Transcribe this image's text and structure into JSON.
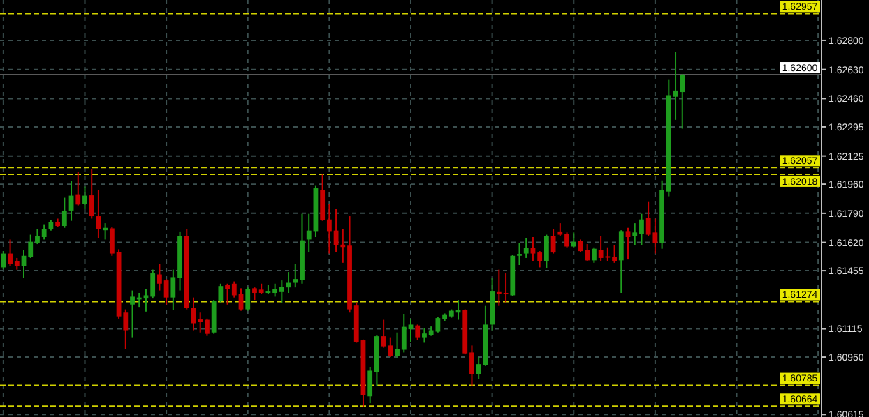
{
  "chart_data": {
    "type": "candlestick",
    "categories": [
      null,
      null,
      null,
      null,
      null,
      null,
      null,
      null,
      null,
      null,
      null,
      null,
      null,
      null,
      null,
      null,
      null,
      null,
      null,
      null,
      null,
      null,
      null,
      null,
      null,
      null,
      null,
      null,
      null,
      null,
      null,
      null,
      null,
      null,
      null,
      null,
      null,
      null,
      null,
      null,
      null,
      null,
      null,
      null,
      null,
      null,
      null,
      null,
      null,
      null,
      null,
      null,
      null,
      null,
      null,
      null,
      null,
      null,
      null,
      null,
      null,
      null,
      null,
      null,
      null,
      null,
      null,
      null,
      null,
      null,
      null,
      null,
      null,
      null,
      null,
      null,
      null,
      null,
      null,
      null,
      null,
      null,
      null,
      null,
      null,
      null,
      null,
      null,
      null,
      null,
      null,
      null,
      null,
      null,
      null,
      null,
      null,
      null,
      null,
      null,
      null,
      null,
      null,
      null,
      null,
      null,
      null,
      null,
      null,
      null,
      null,
      null,
      null,
      null,
      null,
      null,
      null,
      null,
      null,
      null,
      null
    ],
    "ohlc": [
      [
        1.61474,
        1.61569,
        1.61463,
        1.61555
      ],
      [
        1.61555,
        1.61637,
        1.61482,
        1.61494
      ],
      [
        1.6151,
        1.61529,
        1.61461,
        1.61482
      ],
      [
        1.61482,
        1.61577,
        1.61414,
        1.61542
      ],
      [
        1.61536,
        1.61665,
        1.61529,
        1.61624
      ],
      [
        1.61618,
        1.61699,
        1.6161,
        1.61657
      ],
      [
        1.61651,
        1.61726,
        1.61637,
        1.61699
      ],
      [
        1.61697,
        1.61751,
        1.61689,
        1.61738
      ],
      [
        1.61738,
        1.61759,
        1.6171,
        1.61716
      ],
      [
        1.61716,
        1.61881,
        1.61705,
        1.61806
      ],
      [
        1.61806,
        1.61977,
        1.61746,
        1.61893
      ],
      [
        1.61901,
        1.62031,
        1.61836,
        1.61841
      ],
      [
        1.61844,
        1.61947,
        1.61814,
        1.61893
      ],
      [
        1.61895,
        1.6205,
        1.61759,
        1.61773
      ],
      [
        1.61773,
        1.61928,
        1.61645,
        1.61697
      ],
      [
        1.61691,
        1.61732,
        1.61637,
        1.61705
      ],
      [
        1.61702,
        1.6171,
        1.61542,
        1.61555
      ],
      [
        1.61563,
        1.6158,
        1.61175,
        1.61188
      ],
      [
        1.6121,
        1.61229,
        1.60999,
        1.61107
      ],
      [
        1.61257,
        1.61339,
        1.61066,
        1.61303
      ],
      [
        1.61287,
        1.61325,
        1.61243,
        1.61298
      ],
      [
        1.61292,
        1.61347,
        1.61216,
        1.61311
      ],
      [
        1.61303,
        1.61461,
        1.61292,
        1.61439
      ],
      [
        1.61433,
        1.61494,
        1.61339,
        1.61379
      ],
      [
        1.61398,
        1.61406,
        1.61257,
        1.61298
      ],
      [
        1.61298,
        1.61461,
        1.61224,
        1.61417
      ],
      [
        1.61414,
        1.61684,
        1.61339,
        1.61659
      ],
      [
        1.61659,
        1.61699,
        1.61229,
        1.61237
      ],
      [
        1.61237,
        1.61298,
        1.61107,
        1.61148
      ],
      [
        1.6117,
        1.6121,
        1.61094,
        1.61154
      ],
      [
        1.61168,
        1.61175,
        1.61074,
        1.61086
      ],
      [
        1.61094,
        1.61284,
        1.61086,
        1.61278
      ],
      [
        1.61276,
        1.61379,
        1.6127,
        1.61365
      ],
      [
        1.61371,
        1.61379,
        1.61257,
        1.61347
      ],
      [
        1.61379,
        1.61392,
        1.61298,
        1.61311
      ],
      [
        1.61319,
        1.61352,
        1.61221,
        1.61229
      ],
      [
        1.61229,
        1.61357,
        1.61221,
        1.61347
      ],
      [
        1.61352,
        1.61357,
        1.61284,
        1.61325
      ],
      [
        1.61344,
        1.61379,
        1.61319,
        1.61325
      ],
      [
        1.6133,
        1.61374,
        1.61319,
        1.61333
      ],
      [
        1.61325,
        1.61379,
        1.61303,
        1.61347
      ],
      [
        1.6133,
        1.61398,
        1.61265,
        1.6136
      ],
      [
        1.61357,
        1.61447,
        1.61325,
        1.61384
      ],
      [
        1.61384,
        1.61494,
        1.61357,
        1.61406
      ],
      [
        1.614,
        1.61787,
        1.61379,
        1.61632
      ],
      [
        1.61637,
        1.61787,
        1.61563,
        1.61689
      ],
      [
        1.61686,
        1.6195,
        1.61651,
        1.61936
      ],
      [
        1.61928,
        1.62017,
        1.61746,
        1.61751
      ],
      [
        1.61754,
        1.61846,
        1.61555,
        1.61686
      ],
      [
        1.61689,
        1.61814,
        1.61563,
        1.61604
      ],
      [
        1.61607,
        1.61697,
        1.61501,
        1.61593
      ],
      [
        1.61601,
        1.61773,
        1.6121,
        1.61229
      ],
      [
        1.61251,
        1.6127,
        1.61034,
        1.6104
      ],
      [
        1.61048,
        1.61053,
        1.60659,
        1.60727
      ],
      [
        1.60721,
        1.6089,
        1.60681,
        1.60871
      ],
      [
        1.60863,
        1.6108,
        1.60781,
        1.61072
      ],
      [
        1.61072,
        1.61168,
        1.61005,
        1.61013
      ],
      [
        1.61018,
        1.61066,
        1.6095,
        1.60958
      ],
      [
        1.60958,
        1.61094,
        1.60944,
        1.60999
      ],
      [
        1.60993,
        1.61202,
        1.60977,
        1.61127
      ],
      [
        1.61113,
        1.61175,
        1.6104,
        1.6114
      ],
      [
        1.61135,
        1.6114,
        1.61048,
        1.61066
      ],
      [
        1.61066,
        1.61121,
        1.61034,
        1.61088
      ],
      [
        1.6108,
        1.61129,
        1.61074,
        1.61107
      ],
      [
        1.61099,
        1.61184,
        1.61094,
        1.61178
      ],
      [
        1.61173,
        1.61205,
        1.61162,
        1.61196
      ],
      [
        1.61188,
        1.61229,
        1.6118,
        1.61221
      ],
      [
        1.6121,
        1.61284,
        1.61168,
        1.61224
      ],
      [
        1.61224,
        1.61229,
        1.60966,
        1.60972
      ],
      [
        1.60977,
        1.61018,
        1.60781,
        1.6085
      ],
      [
        1.6085,
        1.6095,
        1.60822,
        1.60909
      ],
      [
        1.60904,
        1.61249,
        1.60898,
        1.6114
      ],
      [
        1.6114,
        1.61412,
        1.61107,
        1.61333
      ],
      [
        1.6133,
        1.61461,
        1.61249,
        1.61319
      ],
      [
        1.61325,
        1.61439,
        1.6127,
        1.61317
      ],
      [
        1.61311,
        1.61547,
        1.61306,
        1.61542
      ],
      [
        1.61542,
        1.61618,
        1.61488,
        1.61553
      ],
      [
        1.61555,
        1.61645,
        1.61529,
        1.61588
      ],
      [
        1.61588,
        1.61651,
        1.6151,
        1.61555
      ],
      [
        1.61561,
        1.61569,
        1.61474,
        1.6151
      ],
      [
        1.6151,
        1.61665,
        1.61471,
        1.61657
      ],
      [
        1.61659,
        1.61699,
        1.61555,
        1.61561
      ],
      [
        1.61684,
        1.61732,
        1.61657,
        1.61665
      ],
      [
        1.6167,
        1.61678,
        1.61591,
        1.61596
      ],
      [
        1.61596,
        1.61678,
        1.61591,
        1.61624
      ],
      [
        1.61629,
        1.61637,
        1.61563,
        1.61569
      ],
      [
        1.61577,
        1.6161,
        1.6151,
        1.61515
      ],
      [
        1.61515,
        1.61591,
        1.61501,
        1.61583
      ],
      [
        1.61577,
        1.61659,
        1.6151,
        1.61529
      ],
      [
        1.61539,
        1.61591,
        1.6151,
        1.61531
      ],
      [
        1.61536,
        1.61602,
        1.61501,
        1.6151
      ],
      [
        1.61515,
        1.61691,
        1.61325,
        1.61686
      ],
      [
        1.61686,
        1.61705,
        1.6152,
        1.61651
      ],
      [
        1.61657,
        1.61732,
        1.61602,
        1.61678
      ],
      [
        1.6167,
        1.61787,
        1.61602,
        1.61754
      ],
      [
        1.61765,
        1.6186,
        1.61657,
        1.61665
      ],
      [
        1.61678,
        1.61759,
        1.61555,
        1.61618
      ],
      [
        1.61618,
        1.61982,
        1.61583,
        1.61928
      ],
      [
        1.61917,
        1.62569,
        1.61889,
        1.6248
      ],
      [
        1.62471,
        1.62732,
        1.62336,
        1.62507
      ],
      [
        1.62498,
        1.62604,
        1.62284,
        1.626
      ],
      null,
      null,
      null,
      null,
      null,
      null,
      null,
      null,
      null,
      null,
      null,
      null,
      null,
      null,
      null,
      null,
      null,
      null,
      null,
      null
    ],
    "colors": [
      "#1e9e1e",
      "#c80000",
      "#c80000",
      "#1e9e1e",
      "#1e9e1e",
      "#1e9e1e",
      "#1e9e1e",
      "#1e9e1e",
      "#c80000",
      "#1e9e1e",
      "#1e9e1e",
      "#c80000",
      "#1e9e1e",
      "#c80000",
      "#c80000",
      "#1e9e1e",
      "#c80000",
      "#c80000",
      "#c80000",
      "#1e9e1e",
      "#1e9e1e",
      "#1e9e1e",
      "#1e9e1e",
      "#c80000",
      "#c80000",
      "#1e9e1e",
      "#1e9e1e",
      "#c80000",
      "#c80000",
      "#c80000",
      "#c80000",
      "#1e9e1e",
      "#1e9e1e",
      "#c80000",
      "#c80000",
      "#c80000",
      "#1e9e1e",
      "#c80000",
      "#c80000",
      "#1e9e1e",
      "#1e9e1e",
      "#1e9e1e",
      "#1e9e1e",
      "#1e9e1e",
      "#1e9e1e",
      "#1e9e1e",
      "#1e9e1e",
      "#c80000",
      "#c80000",
      "#c80000",
      "#c80000",
      "#c80000",
      "#c80000",
      "#c80000",
      "#1e9e1e",
      "#1e9e1e",
      "#c80000",
      "#c80000",
      "#1e9e1e",
      "#1e9e1e",
      "#1e9e1e",
      "#c80000",
      "#1e9e1e",
      "#1e9e1e",
      "#1e9e1e",
      "#1e9e1e",
      "#1e9e1e",
      "#1e9e1e",
      "#c80000",
      "#c80000",
      "#1e9e1e",
      "#1e9e1e",
      "#1e9e1e",
      "#c80000",
      "#c80000",
      "#1e9e1e",
      "#1e9e1e",
      "#1e9e1e",
      "#c80000",
      "#c80000",
      "#1e9e1e",
      "#c80000",
      "#c80000",
      "#c80000",
      "#1e9e1e",
      "#c80000",
      "#c80000",
      "#1e9e1e",
      "#c80000",
      "#c80000",
      "#c80000",
      "#1e9e1e",
      "#c80000",
      "#1e9e1e",
      "#1e9e1e",
      "#c80000",
      "#c80000",
      "#1e9e1e",
      "#1e9e1e",
      "#1e9e1e",
      "#1e9e1e",
      null,
      null,
      null,
      null,
      null,
      null,
      null,
      null,
      null,
      null,
      null,
      null,
      null,
      null,
      null,
      null,
      null,
      null,
      null,
      null
    ],
    "ylim": [
      1.606,
      1.63036
    ],
    "yticks": [
      {
        "value": 1.628,
        "label": "1.62800"
      },
      {
        "value": 1.6263,
        "label": "1.62630"
      },
      {
        "value": 1.6246,
        "label": "1.62460"
      },
      {
        "value": 1.62295,
        "label": "1.62295"
      },
      {
        "value": 1.62125,
        "label": "1.62125"
      },
      {
        "value": 1.6196,
        "label": "1.61960"
      },
      {
        "value": 1.6179,
        "label": "1.61790"
      },
      {
        "value": 1.6162,
        "label": "1.61620"
      },
      {
        "value": 1.61455,
        "label": "1.61455"
      },
      {
        "value": 1.61115,
        "label": "1.61115"
      },
      {
        "value": 1.6095,
        "label": "1.60950"
      },
      {
        "value": 1.60615,
        "label": "1.60615"
      }
    ],
    "ref_lines": [
      {
        "axis": "y",
        "value": 1.62957,
        "label": "1.62957",
        "color": "#e8e800",
        "line_style": "dashed"
      },
      {
        "axis": "y",
        "value": 1.626,
        "label": "1.62600",
        "color": "#ffffff",
        "line_style": "solid"
      },
      {
        "axis": "y",
        "value": 1.62057,
        "label": "1.62057",
        "color": "#e8e800",
        "line_style": "dashed"
      },
      {
        "axis": "y",
        "value": 1.62018,
        "label": "1.62018",
        "color": "#e8e800",
        "line_style": "dashed"
      },
      {
        "axis": "y",
        "value": 1.61274,
        "label": "1.61274",
        "color": "#e8e800",
        "line_style": "dashed"
      },
      {
        "axis": "y",
        "value": 1.60785,
        "label": "1.60785",
        "color": "#e8e800",
        "line_style": "dashed"
      },
      {
        "axis": "y",
        "value": 1.60664,
        "label": "1.60664",
        "color": "#e8e800",
        "line_style": "dashed"
      }
    ],
    "grid": true,
    "tick_labels": "y"
  }
}
